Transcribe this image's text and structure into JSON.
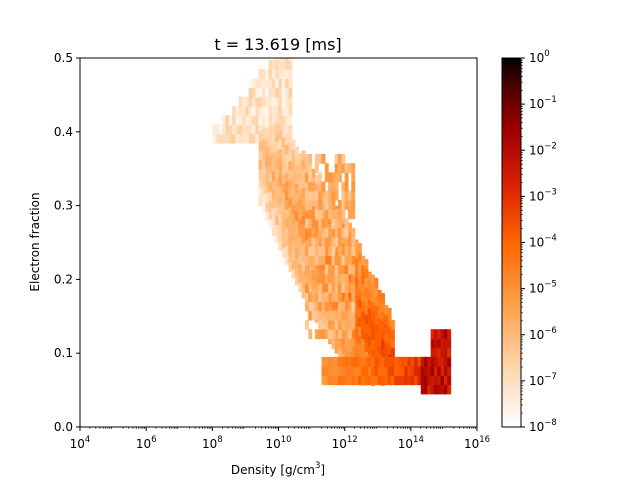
{
  "chart_data": {
    "type": "heatmap",
    "title": "t = 13.619 [ms]",
    "xlabel": "Density [g/cm",
    "xlabel_sup": "3",
    "xlabel_suffix": "]",
    "ylabel": "Electron fraction",
    "x_scale": "log",
    "xlim": [
      10000,
      10000000000000000
    ],
    "ylim": [
      0,
      0.5
    ],
    "x_ticks": [
      {
        "value": 10000,
        "base": "10",
        "exp": "4"
      },
      {
        "value": 1000000,
        "base": "10",
        "exp": "6"
      },
      {
        "value": 100000000,
        "base": "10",
        "exp": "8"
      },
      {
        "value": 10000000000,
        "base": "10",
        "exp": "10"
      },
      {
        "value": 1000000000000,
        "base": "10",
        "exp": "12"
      },
      {
        "value": 100000000000000,
        "base": "10",
        "exp": "14"
      },
      {
        "value": 10000000000000000,
        "base": "10",
        "exp": "16"
      }
    ],
    "y_ticks": [
      {
        "value": 0.0,
        "label": "0.0"
      },
      {
        "value": 0.1,
        "label": "0.1"
      },
      {
        "value": 0.2,
        "label": "0.2"
      },
      {
        "value": 0.3,
        "label": "0.3"
      },
      {
        "value": 0.4,
        "label": "0.4"
      },
      {
        "value": 0.5,
        "label": "0.5"
      }
    ],
    "colorbar": {
      "scale": "log",
      "colormap": "gist_heat_r",
      "range": [
        1e-08,
        1
      ],
      "ticks": [
        {
          "value": 1,
          "base": "10",
          "exp": "0"
        },
        {
          "value": 0.1,
          "base": "10",
          "exp": "−1"
        },
        {
          "value": 0.01,
          "base": "10",
          "exp": "−2"
        },
        {
          "value": 0.001,
          "base": "10",
          "exp": "−3"
        },
        {
          "value": 0.0001,
          "base": "10",
          "exp": "−4"
        },
        {
          "value": 1e-05,
          "base": "10",
          "exp": "−5"
        },
        {
          "value": 1e-06,
          "base": "10",
          "exp": "−6"
        },
        {
          "value": 1e-07,
          "base": "10",
          "exp": "−7"
        },
        {
          "value": 1e-08,
          "base": "10",
          "exp": "−8"
        }
      ]
    },
    "background": "#ffffff",
    "distribution_features": [
      {
        "log10_density": [
          8.0,
          10.2
        ],
        "ye": [
          0.38,
          0.5
        ],
        "log10_value": [
          -8,
          -6.5
        ]
      },
      {
        "log10_density": [
          9.5,
          12.5
        ],
        "ye": [
          0.1,
          0.38
        ],
        "log10_value": [
          -7,
          -5
        ]
      },
      {
        "log10_density": [
          11.0,
          14.9
        ],
        "ye": [
          0.06,
          0.12
        ],
        "log10_value": [
          -5,
          -3
        ]
      },
      {
        "log10_density": [
          14.3,
          15.1
        ],
        "ye": [
          0.04,
          0.12
        ],
        "log10_value": [
          -3,
          -1.5
        ]
      }
    ]
  }
}
